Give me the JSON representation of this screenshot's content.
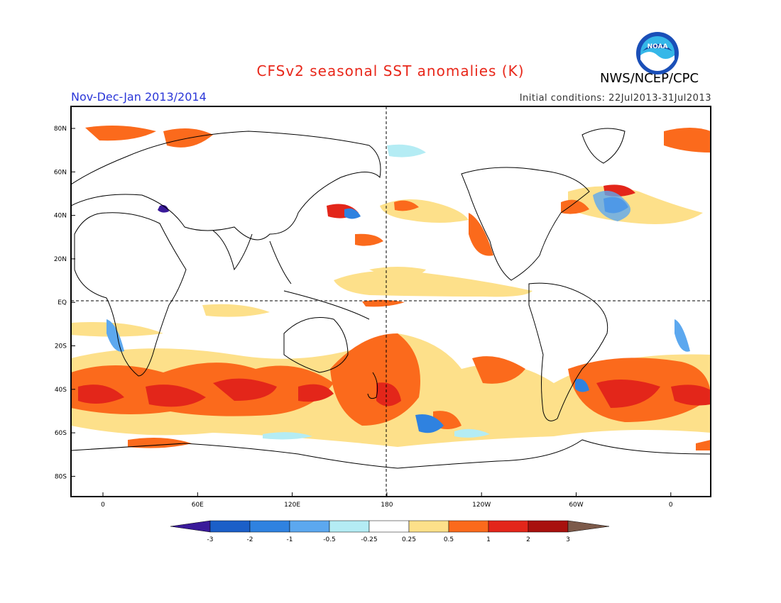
{
  "header": {
    "title": "CFSv2 seasonal SST anomalies (K)",
    "season": "Nov-Dec-Jan 2013/2014",
    "initial_conditions": "Initial conditions: 22Jul2013-31Jul2013",
    "agency": "NWS/NCEP/CPC",
    "logo_text": "NOAA"
  },
  "map": {
    "projection": "cylindrical equidistant",
    "lon_ticks": [
      "0",
      "60E",
      "120E",
      "180",
      "120W",
      "60W",
      "0"
    ],
    "lat_ticks": [
      "80N",
      "60N",
      "40N",
      "20N",
      "EQ",
      "20S",
      "40S",
      "60S",
      "80S"
    ],
    "reference_lines": [
      "EQ",
      "180"
    ]
  },
  "legend": {
    "unit": "K",
    "tick_labels": [
      "-3",
      "-2",
      "-1",
      "-0.5",
      "-0.25",
      "0.25",
      "0.5",
      "1",
      "2",
      "3"
    ],
    "colors": {
      "below_-3": "#3a1a9a",
      "-3_to_-2": "#1b5fc8",
      "-2_to_-1": "#2f82e0",
      "-1_to_-0.5": "#5ca8ef",
      "-0.5_to_-0.25": "#b4ecf4",
      "-0.25_to_0.25": "#ffffff",
      "0.25_to_0.5": "#fde08a",
      "0.5_to_1": "#fb6a1c",
      "1_to_2": "#e3261a",
      "2_to_3": "#a8110e",
      "above_3": "#7c5a4a"
    }
  }
}
